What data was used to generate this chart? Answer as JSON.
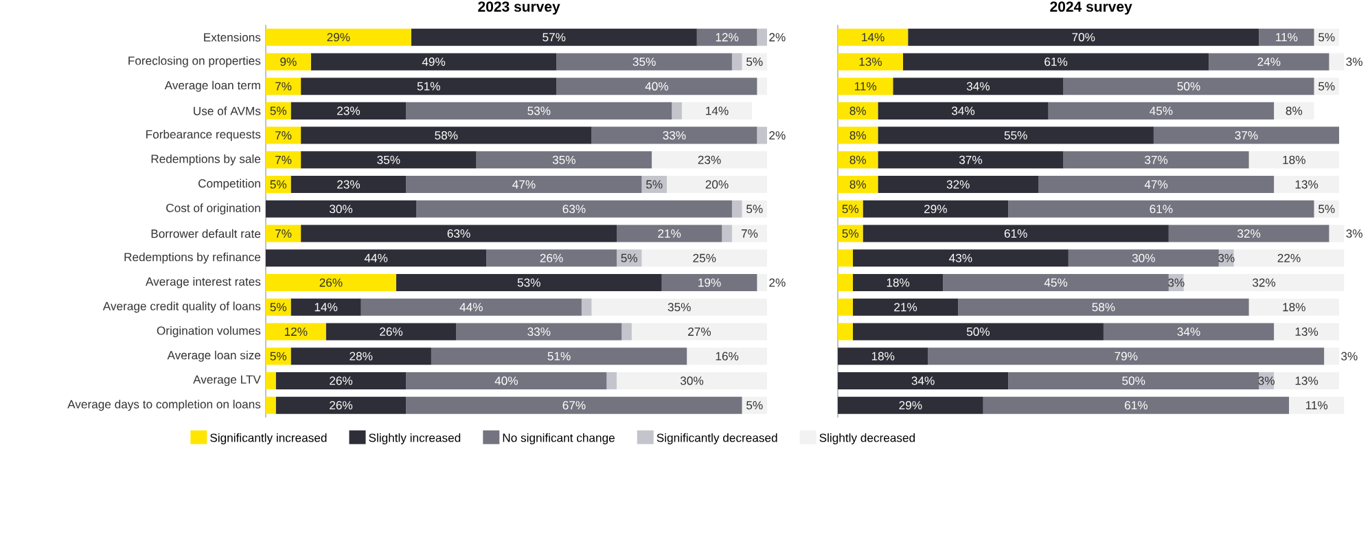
{
  "chart_data": [
    {
      "type": "bar",
      "title": "2023 survey",
      "orientation": "horizontal",
      "stacked": true,
      "tick_labels": "y",
      "legend": "bottom",
      "categories": [
        "Extensions",
        "Foreclosing on properties",
        "Average loan term",
        "Use of AVMs",
        "Forbearance requests",
        "Redemptions by sale",
        "Competition",
        "Cost of origination",
        "Borrower default rate",
        "Redemptions by refinance",
        "Average interest rates",
        "Average credit quality of loans",
        "Origination volumes",
        "Average loan size",
        "Average LTV",
        "Average days to completion on loans"
      ],
      "series": [
        {
          "name": "Significantly increased",
          "color": "#ffe600",
          "values": [
            29,
            9,
            7,
            5,
            7,
            7,
            5,
            0,
            7,
            0,
            26,
            5,
            12,
            5,
            2,
            2
          ],
          "value_labels": [
            "29%",
            "9%",
            "7%",
            "5%",
            "7%",
            "7%",
            "5%",
            null,
            "7%",
            null,
            "26%",
            "5%",
            "12%",
            "5%",
            null,
            null
          ]
        },
        {
          "name": "Slightly increased",
          "color": "#2e2e38",
          "values": [
            57,
            49,
            51,
            23,
            58,
            35,
            23,
            30,
            63,
            44,
            53,
            14,
            26,
            28,
            26,
            26
          ],
          "value_labels": [
            "57%",
            "49%",
            "51%",
            "23%",
            "58%",
            "35%",
            "23%",
            "30%",
            "63%",
            "44%",
            "53%",
            "14%",
            "26%",
            "28%",
            "26%",
            "26%"
          ]
        },
        {
          "name": "No significant change",
          "color": "#747480",
          "values": [
            12,
            35,
            40,
            53,
            33,
            35,
            47,
            63,
            21,
            26,
            19,
            44,
            33,
            51,
            40,
            67
          ],
          "value_labels": [
            "12%",
            "35%",
            "40%",
            "53%",
            "33%",
            "35%",
            "47%",
            "63%",
            "21%",
            "26%",
            "19%",
            "44%",
            "33%",
            "51%",
            "40%",
            "67%"
          ]
        },
        {
          "name": "Significantly decreased",
          "color": "#c4c4cd",
          "values": [
            2,
            2,
            0,
            2,
            2,
            0,
            5,
            2,
            2,
            5,
            0,
            2,
            2,
            0,
            2,
            0
          ],
          "value_labels": [
            "2%",
            null,
            null,
            null,
            "2%",
            null,
            "5%",
            null,
            null,
            "5%",
            null,
            null,
            null,
            null,
            null,
            null
          ]
        },
        {
          "name": "Slightly decreased",
          "color": "#f2f2f2",
          "values": [
            0,
            5,
            2,
            14,
            0,
            23,
            20,
            5,
            7,
            25,
            2,
            35,
            27,
            16,
            30,
            5
          ],
          "value_labels": [
            null,
            "5%",
            null,
            "14%",
            null,
            "23%",
            "20%",
            "5%",
            "7%",
            "25%",
            "2%",
            "35%",
            "27%",
            "16%",
            "30%",
            "5%"
          ]
        }
      ]
    },
    {
      "type": "bar",
      "title": "2024 survey",
      "orientation": "horizontal",
      "stacked": true,
      "tick_labels": false,
      "categories": [
        null,
        null,
        null,
        null,
        null,
        null,
        null,
        null,
        null,
        null,
        null,
        null,
        null,
        null,
        null,
        null
      ],
      "series": [
        {
          "color": "#ffe600",
          "values": [
            14,
            13,
            11,
            8,
            8,
            8,
            8,
            5,
            5,
            3,
            3,
            3,
            3,
            0,
            0,
            0
          ],
          "value_labels": [
            "14%",
            "13%",
            "11%",
            "8%",
            "8%",
            "8%",
            "8%",
            "5%",
            "5%",
            null,
            null,
            null,
            null,
            null,
            null,
            null
          ]
        },
        {
          "color": "#2e2e38",
          "values": [
            70,
            61,
            34,
            34,
            55,
            37,
            32,
            29,
            61,
            43,
            18,
            21,
            50,
            18,
            34,
            29
          ],
          "value_labels": [
            "70%",
            "61%",
            "34%",
            "34%",
            "55%",
            "37%",
            "32%",
            "29%",
            "61%",
            "43%",
            "18%",
            "21%",
            "50%",
            "18%",
            "34%",
            "29%"
          ]
        },
        {
          "color": "#747480",
          "values": [
            11,
            24,
            50,
            45,
            37,
            37,
            47,
            61,
            32,
            30,
            45,
            58,
            34,
            79,
            50,
            61
          ],
          "value_labels": [
            "11%",
            "24%",
            "50%",
            "45%",
            "37%",
            "37%",
            "47%",
            "61%",
            "32%",
            "30%",
            "45%",
            "58%",
            "34%",
            "79%",
            "50%",
            "61%"
          ]
        },
        {
          "color": "#c4c4cd",
          "values": [
            0,
            0,
            0,
            0,
            0,
            0,
            0,
            0,
            0,
            3,
            3,
            0,
            0,
            0,
            3,
            0
          ],
          "value_labels": [
            null,
            null,
            null,
            null,
            null,
            null,
            null,
            null,
            null,
            "3%",
            "3%",
            null,
            null,
            null,
            "3%",
            null
          ]
        },
        {
          "color": "#f2f2f2",
          "values": [
            5,
            3,
            5,
            8,
            0,
            18,
            13,
            5,
            3,
            22,
            32,
            18,
            13,
            3,
            13,
            11
          ],
          "value_labels": [
            "5%",
            "3%",
            "5%",
            "8%",
            null,
            "18%",
            "13%",
            "5%",
            "3%",
            "22%",
            "32%",
            "18%",
            "13%",
            "3%",
            "13%",
            "11%"
          ]
        }
      ]
    }
  ]
}
